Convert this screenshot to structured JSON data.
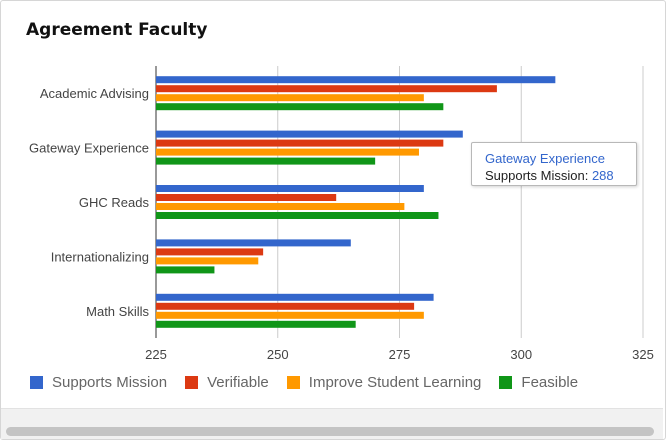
{
  "header": {
    "title": "Agreement Faculty"
  },
  "tooltip": {
    "category": "Gateway Experience",
    "series": "Supports Mission",
    "separator": ": ",
    "value": "288"
  },
  "chart_data": {
    "type": "bar",
    "orientation": "horizontal",
    "title": "Agreement Faculty",
    "categories": [
      "Academic Advising",
      "Gateway Experience",
      "GHC Reads",
      "Internationalizing",
      "Math Skills"
    ],
    "series": [
      {
        "name": "Supports Mission",
        "color": "#3366cc",
        "values": [
          307,
          288,
          280,
          265,
          282
        ]
      },
      {
        "name": "Verifiable",
        "color": "#dc3912",
        "values": [
          295,
          284,
          262,
          247,
          278
        ]
      },
      {
        "name": "Improve Student Learning",
        "color": "#ff9900",
        "values": [
          280,
          279,
          276,
          246,
          280
        ]
      },
      {
        "name": "Feasible",
        "color": "#109618",
        "values": [
          284,
          270,
          283,
          237,
          266
        ]
      }
    ],
    "xlim": [
      225,
      325
    ],
    "xticks": [
      "225",
      "250",
      "275",
      "300",
      "325"
    ],
    "grid": true,
    "legend_position": "bottom"
  }
}
